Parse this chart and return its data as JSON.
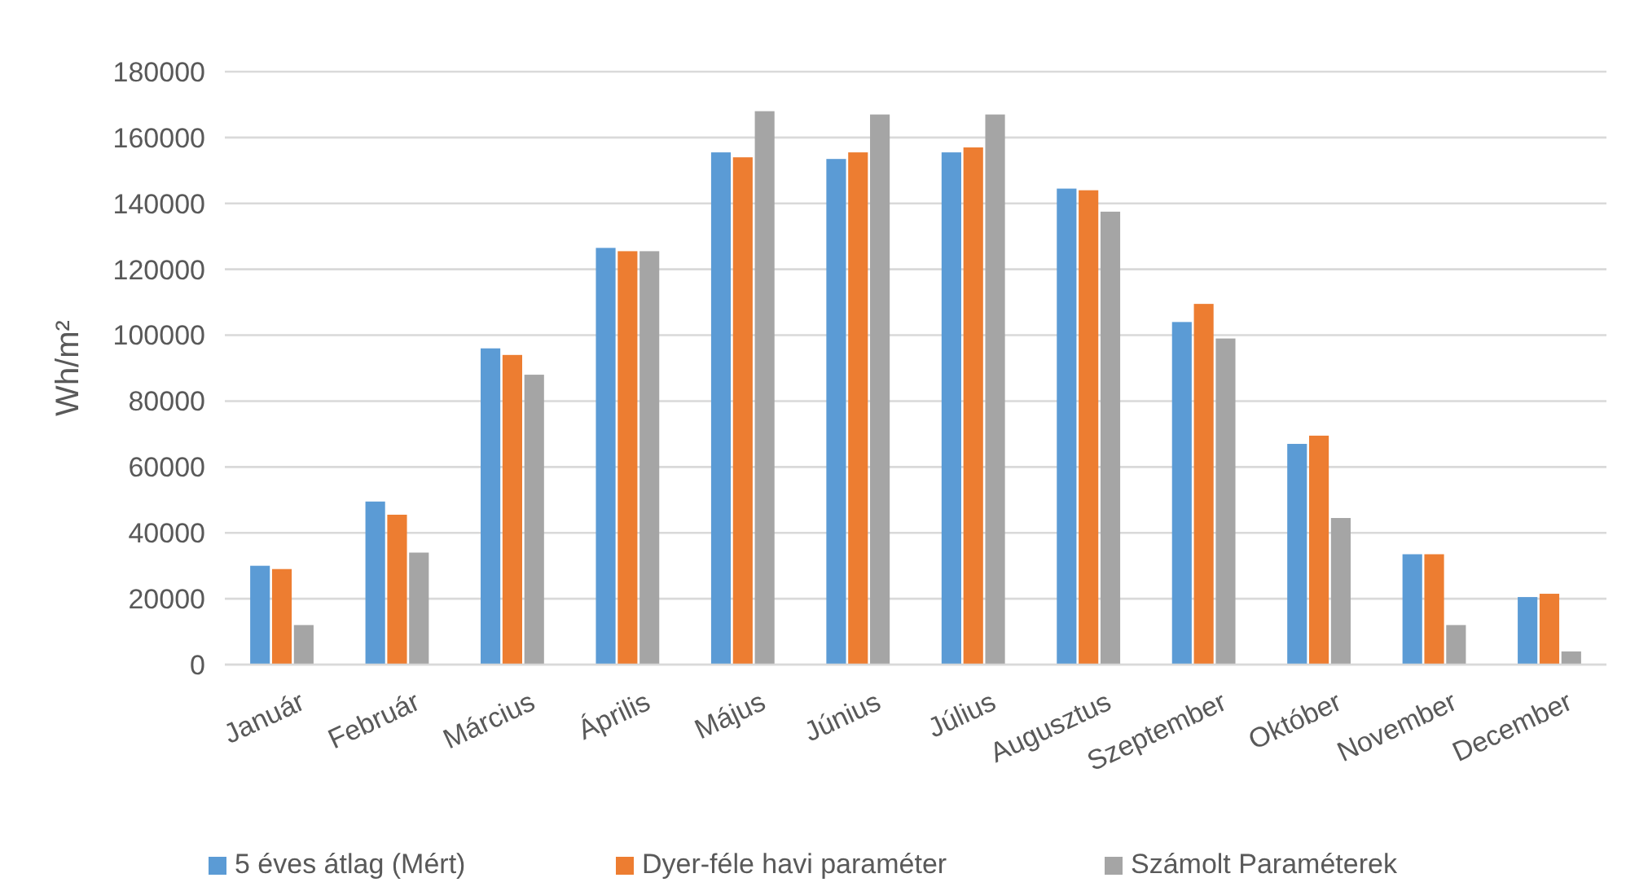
{
  "chart_data": {
    "type": "bar",
    "ylabel": "Wh/m²",
    "categories": [
      "Január",
      "Február",
      "Március",
      "Április",
      "Május",
      "Június",
      "Július",
      "Augusztus",
      "Szeptember",
      "Október",
      "November",
      "December"
    ],
    "series": [
      {
        "name": "5 éves átlag (Mért)",
        "color": "#5b9bd5",
        "values": [
          30000,
          49500,
          96000,
          126500,
          155500,
          153500,
          155500,
          144500,
          104000,
          67000,
          33500,
          20500
        ]
      },
      {
        "name": "Dyer-féle havi paraméter",
        "color": "#ed7d31",
        "values": [
          29000,
          45500,
          94000,
          125500,
          154000,
          155500,
          157000,
          144000,
          109500,
          69500,
          33500,
          21500
        ]
      },
      {
        "name": "Számolt Paraméterek",
        "color": "#a5a5a5",
        "values": [
          12000,
          34000,
          88000,
          125500,
          168000,
          167000,
          167000,
          137500,
          99000,
          44500,
          12000,
          4000
        ]
      }
    ],
    "ylim": [
      0,
      180000
    ],
    "yticks": [
      0,
      20000,
      40000,
      60000,
      80000,
      100000,
      120000,
      140000,
      160000,
      180000
    ],
    "grid": "y",
    "legend": "bottom"
  }
}
